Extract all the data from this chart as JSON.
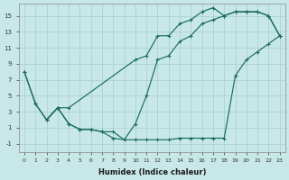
{
  "xlabel": "Humidex (Indice chaleur)",
  "xlim": [
    -0.5,
    23.5
  ],
  "ylim": [
    -2,
    16.5
  ],
  "xticks": [
    0,
    1,
    2,
    3,
    4,
    5,
    6,
    7,
    8,
    9,
    10,
    11,
    12,
    13,
    14,
    15,
    16,
    17,
    18,
    19,
    20,
    21,
    22,
    23
  ],
  "yticks": [
    -1,
    1,
    3,
    5,
    7,
    9,
    11,
    13,
    15
  ],
  "bg_color": "#c8e8e8",
  "line_color": "#1a6b5e",
  "grid_color": "#a8cccc",
  "series1_x": [
    0,
    1,
    2,
    3,
    4,
    10,
    11,
    12,
    13,
    14,
    15,
    16,
    17,
    18,
    19,
    20,
    21,
    22,
    23
  ],
  "series1_y": [
    8.0,
    4.0,
    2.0,
    3.5,
    3.5,
    9.5,
    10.0,
    12.5,
    12.5,
    14.0,
    14.5,
    15.5,
    16.0,
    15.0,
    15.5,
    15.5,
    15.5,
    15.0,
    12.5
  ],
  "series2_x": [
    0,
    1,
    2,
    3,
    4,
    5,
    6,
    7,
    8,
    9,
    10,
    11,
    12,
    13,
    14,
    15,
    16,
    17,
    18,
    19,
    20,
    21,
    22,
    23
  ],
  "series2_y": [
    8.0,
    4.0,
    2.0,
    3.5,
    1.5,
    0.8,
    0.8,
    0.5,
    0.5,
    -0.5,
    1.5,
    5.0,
    9.5,
    10.0,
    11.8,
    12.5,
    14.0,
    14.5,
    15.0,
    15.5,
    15.5,
    15.5,
    15.0,
    12.5
  ],
  "series3_x": [
    2,
    3,
    4,
    5,
    6,
    7,
    8,
    9,
    10,
    11,
    12,
    13,
    14,
    15,
    16,
    17,
    18,
    19,
    20,
    21,
    22,
    23
  ],
  "series3_y": [
    2.0,
    3.5,
    1.5,
    0.8,
    0.8,
    0.5,
    -0.3,
    -0.5,
    -0.5,
    -0.5,
    -0.5,
    -0.5,
    -0.3,
    -0.3,
    -0.3,
    -0.3,
    -0.3,
    7.5,
    9.5,
    10.5,
    11.5,
    12.5
  ]
}
